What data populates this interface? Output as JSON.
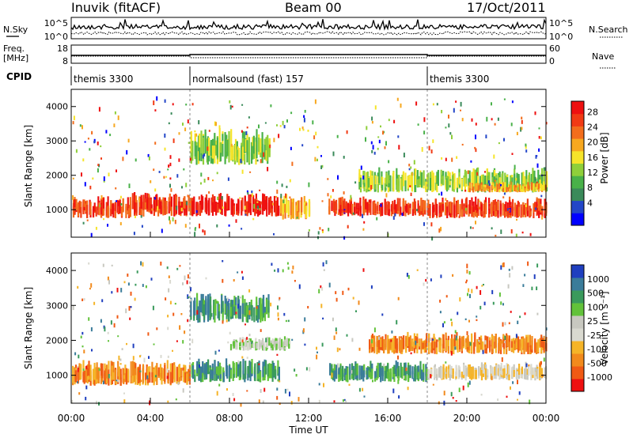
{
  "header": {
    "station": "Inuvik (fitACF)",
    "beam": "Beam 00",
    "date": "17/Oct/2011"
  },
  "top_panel": {
    "left_label": "N.Sky",
    "right_label": "N.Search",
    "left_ticks": [
      "10^5",
      "10^0"
    ],
    "right_ticks": [
      "10^5",
      "10^0"
    ]
  },
  "freq_panel": {
    "left_label_1": "Freq.",
    "left_label_2": "[MHz]",
    "right_label": "Nave",
    "left_ticks": [
      "18",
      "8"
    ],
    "right_ticks": [
      "60",
      "0"
    ]
  },
  "cpid": {
    "label": "CPID",
    "segments": [
      {
        "name": "themis 3300",
        "start": 0,
        "end": 6
      },
      {
        "name": "normalsound (fast) 157",
        "start": 6,
        "end": 18
      },
      {
        "name": "themis 3300",
        "start": 18,
        "end": 24
      }
    ]
  },
  "x_axis": {
    "label": "Time UT",
    "ticks": [
      "00:00",
      "04:00",
      "08:00",
      "12:00",
      "16:00",
      "20:00",
      "00:00"
    ]
  },
  "chart_data": [
    {
      "type": "heatmap",
      "title": "",
      "ylabel": "Slant Range [km]",
      "yticks": [
        1000,
        2000,
        3000,
        4000
      ],
      "ylim": [
        200,
        4500
      ],
      "xlim": [
        0,
        24
      ],
      "colorbar": {
        "label": "Power [dB]",
        "ticks": [
          "4",
          "8",
          "12",
          "16",
          "20",
          "24",
          "28"
        ],
        "colors": [
          "#0000ff",
          "#2346c8",
          "#3a8a5a",
          "#49b149",
          "#8fcf3a",
          "#f6e42a",
          "#f7a820",
          "#f36d1c",
          "#f13a14",
          "#ee1010"
        ]
      },
      "bands": [
        {
          "t0": 0.0,
          "t1": 3.0,
          "r0": 750,
          "r1": 1350,
          "level": 8
        },
        {
          "t0": 3.0,
          "t1": 6.0,
          "r0": 800,
          "r1": 1500,
          "level": 8
        },
        {
          "t0": 6.0,
          "t1": 10.5,
          "r0": 800,
          "r1": 1450,
          "level": 9
        },
        {
          "t0": 10.5,
          "t1": 12.0,
          "r0": 700,
          "r1": 1400,
          "level": 6
        },
        {
          "t0": 13.0,
          "t1": 18.0,
          "r0": 800,
          "r1": 1350,
          "level": 8
        },
        {
          "t0": 18.0,
          "t1": 24.0,
          "r0": 750,
          "r1": 1350,
          "level": 8
        },
        {
          "t0": 6.0,
          "t1": 10.0,
          "r0": 2300,
          "r1": 3300,
          "level": 4
        },
        {
          "t0": 14.5,
          "t1": 24.0,
          "r0": 1500,
          "r1": 2200,
          "level": 4
        },
        {
          "t0": 20.0,
          "t1": 24.0,
          "r0": 1500,
          "r1": 1800,
          "level": 6
        }
      ]
    },
    {
      "type": "heatmap",
      "title": "",
      "ylabel": "Slant Range [km]",
      "yticks": [
        1000,
        2000,
        3000,
        4000
      ],
      "ylim": [
        200,
        4500
      ],
      "xlim": [
        0,
        24
      ],
      "colorbar": {
        "label": "Velocity [m s⁻¹]",
        "ticks": [
          "1000",
          "500",
          "100",
          "25",
          "-25",
          "-100",
          "-500",
          "-1000"
        ],
        "colors": [
          "#1f3fbf",
          "#3a7c9a",
          "#3a9a5c",
          "#62c23a",
          "#c8c8c0",
          "#d9d9d0",
          "#f5b428",
          "#f28a1c",
          "#f05a14",
          "#ee1010"
        ]
      },
      "bands": [
        {
          "t0": 0.0,
          "t1": 6.0,
          "r0": 700,
          "r1": 1400,
          "level": 7
        },
        {
          "t0": 6.0,
          "t1": 10.5,
          "r0": 800,
          "r1": 1450,
          "level": 2
        },
        {
          "t0": 13.0,
          "t1": 18.0,
          "r0": 800,
          "r1": 1400,
          "level": 2
        },
        {
          "t0": 18.0,
          "t1": 24.0,
          "r0": 850,
          "r1": 1350,
          "level": 5
        },
        {
          "t0": 6.0,
          "t1": 10.0,
          "r0": 2500,
          "r1": 3300,
          "level": 2
        },
        {
          "t0": 8.0,
          "t1": 11.0,
          "r0": 1700,
          "r1": 2100,
          "level": 4
        },
        {
          "t0": 15.0,
          "t1": 24.0,
          "r0": 1600,
          "r1": 2200,
          "level": 7
        }
      ]
    }
  ]
}
